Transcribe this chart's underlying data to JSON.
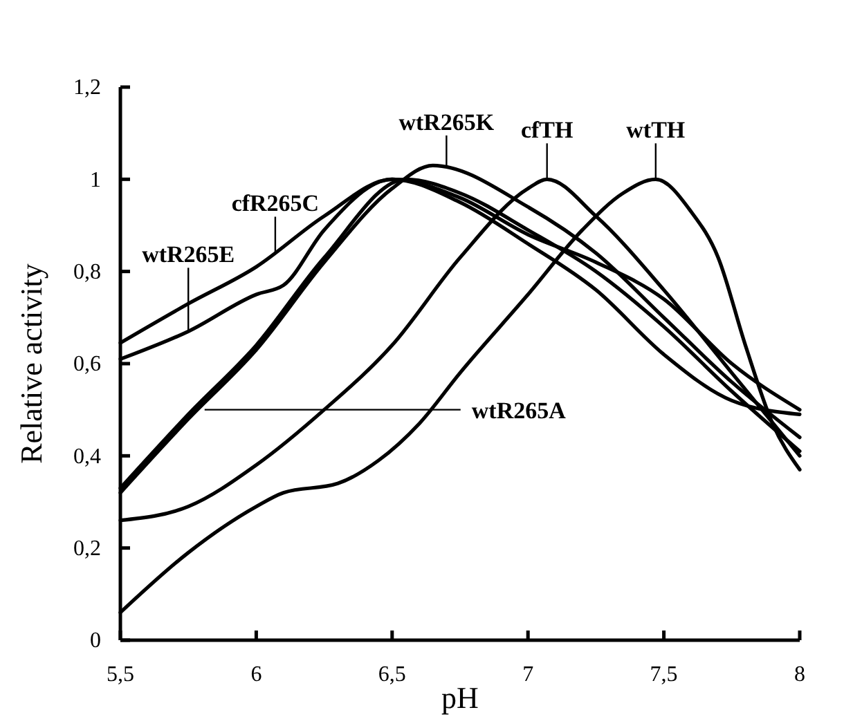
{
  "chart_data": {
    "type": "line",
    "xlabel": "pH",
    "ylabel": "Relative activity",
    "xlim": [
      5.5,
      8
    ],
    "ylim": [
      0,
      1.2
    ],
    "xticks": [
      {
        "value": 5.5,
        "label": "5,5"
      },
      6,
      {
        "value": 6.5,
        "label": "6,5"
      },
      7,
      {
        "value": 7.5,
        "label": "7,5"
      },
      8
    ],
    "yticks": [
      0,
      {
        "value": 0.2,
        "label": "0,2"
      },
      {
        "value": 0.4,
        "label": "0,4"
      },
      {
        "value": 0.6,
        "label": "0,6"
      },
      {
        "value": 0.8,
        "label": "0,8"
      },
      1,
      {
        "value": 1.2,
        "label": "1,2"
      }
    ],
    "grid": false,
    "marker": "none",
    "line_style": "solid",
    "series": [
      {
        "color": "#000000",
        "x": [
          5.5,
          5.75,
          6.0,
          6.1,
          6.25,
          6.5,
          6.75,
          7.0,
          7.25,
          7.5,
          7.75,
          8.0
        ],
        "values": [
          0.61,
          0.67,
          0.75,
          0.77,
          0.89,
          1.0,
          0.95,
          0.86,
          0.76,
          0.62,
          0.52,
          0.49
        ]
      },
      {
        "color": "#000000",
        "x": [
          5.5,
          5.75,
          6.0,
          6.25,
          6.5,
          6.75,
          7.0,
          7.25,
          7.5,
          7.75,
          8.0
        ],
        "values": [
          0.645,
          0.73,
          0.81,
          0.92,
          1.0,
          0.96,
          0.88,
          0.82,
          0.74,
          0.6,
          0.5
        ]
      },
      {
        "color": "#000000",
        "x": [
          5.5,
          5.75,
          6.0,
          6.25,
          6.5,
          6.65,
          7.0,
          7.25,
          7.5,
          7.75,
          8.0
        ],
        "values": [
          0.32,
          0.48,
          0.63,
          0.82,
          0.98,
          1.03,
          0.94,
          0.84,
          0.7,
          0.56,
          0.44
        ]
      },
      {
        "color": "#000000",
        "x": [
          5.5,
          5.75,
          6.0,
          6.25,
          6.55,
          6.75,
          7.0,
          7.25,
          7.5,
          7.75,
          8.0
        ],
        "values": [
          0.33,
          0.49,
          0.64,
          0.83,
          1.0,
          0.97,
          0.89,
          0.8,
          0.68,
          0.54,
          0.41
        ]
      },
      {
        "color": "#000000",
        "x": [
          5.5,
          5.75,
          6.0,
          6.25,
          6.5,
          6.75,
          7.0,
          7.07,
          7.25,
          7.5,
          7.75,
          8.0
        ],
        "values": [
          0.26,
          0.29,
          0.38,
          0.5,
          0.64,
          0.83,
          0.98,
          1.0,
          0.92,
          0.76,
          0.58,
          0.4
        ]
      },
      {
        "color": "#000000",
        "x": [
          5.5,
          5.75,
          6.0,
          6.1,
          6.3,
          6.45,
          6.6,
          6.75,
          7.0,
          7.2,
          7.35,
          7.47,
          7.6,
          7.7,
          7.8,
          7.9,
          8.0
        ],
        "values": [
          0.06,
          0.19,
          0.29,
          0.32,
          0.34,
          0.39,
          0.47,
          0.58,
          0.75,
          0.89,
          0.97,
          1.0,
          0.93,
          0.83,
          0.64,
          0.47,
          0.37
        ]
      }
    ],
    "annotations": [
      {
        "text": "wtR265E",
        "x": 5.75,
        "y": 0.67
      },
      {
        "text": "cfR265C",
        "x": 6.07,
        "y": 0.84
      },
      {
        "text": "wtR265K",
        "x": 6.7,
        "y": 1.03
      },
      {
        "text": "cfTH",
        "x": 7.07,
        "y": 1.0
      },
      {
        "text": "wtTH",
        "x": 7.47,
        "y": 1.0
      },
      {
        "text": "wtR265A",
        "x": 5.81,
        "y": 0.5
      }
    ]
  }
}
